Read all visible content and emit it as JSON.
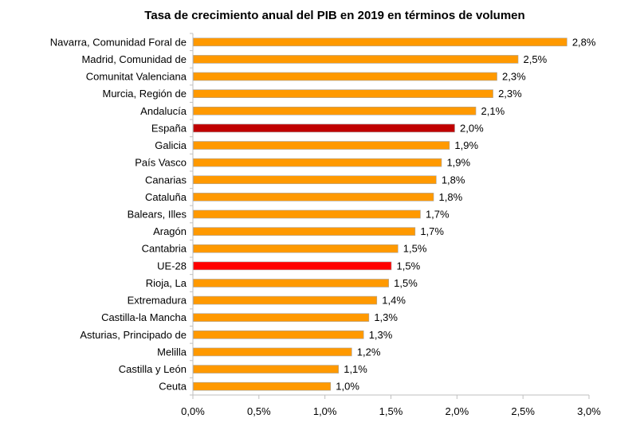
{
  "chart_data": {
    "type": "bar",
    "orientation": "horizontal",
    "title": "Tasa de crecimiento anual del PIB en 2019 en términos de volumen",
    "xlabel": "",
    "ylabel": "",
    "xlim": [
      0,
      3.0
    ],
    "xticks": [
      0,
      0.5,
      1.0,
      1.5,
      2.0,
      2.5,
      3.0
    ],
    "xtick_labels": [
      "0,0%",
      "0,5%",
      "1,0%",
      "1,5%",
      "2,0%",
      "2,5%",
      "3,0%"
    ],
    "grid": false,
    "legend": "none",
    "colors": {
      "default": "#FF9900",
      "highlight_spain": "#C00000",
      "highlight_eu": "#FF0000",
      "bar_border": "#A6A6A6",
      "axis": "#BFBFBF"
    },
    "categories": [
      "Navarra, Comunidad Foral de",
      "Madrid, Comunidad de ",
      "Comunitat Valenciana",
      "Murcia, Región de ",
      "Andalucía ",
      "España",
      "Galicia",
      "País Vasco",
      "Canarias ",
      "Cataluña",
      "Balears, Illes",
      "Aragón",
      "Cantabria",
      "UE-28",
      "Rioja, La ",
      "Extremadura",
      "Castilla-la Mancha",
      "Asturias, Principado de ",
      "Melilla",
      "Castilla y León",
      "Ceuta"
    ],
    "values": [
      2.83,
      2.46,
      2.3,
      2.27,
      2.14,
      1.98,
      1.94,
      1.88,
      1.84,
      1.82,
      1.72,
      1.68,
      1.55,
      1.5,
      1.48,
      1.39,
      1.33,
      1.29,
      1.2,
      1.1,
      1.04
    ],
    "value_labels": [
      "2,8%",
      "2,5%",
      "2,3%",
      "2,3%",
      "2,1%",
      "2,0%",
      "1,9%",
      "1,9%",
      "1,8%",
      "1,8%",
      "1,7%",
      "1,7%",
      "1,5%",
      "1,5%",
      "1,5%",
      "1,4%",
      "1,3%",
      "1,3%",
      "1,2%",
      "1,1%",
      "1,0%"
    ],
    "highlight": {
      "España": "highlight_spain",
      "UE-28": "highlight_eu"
    }
  }
}
